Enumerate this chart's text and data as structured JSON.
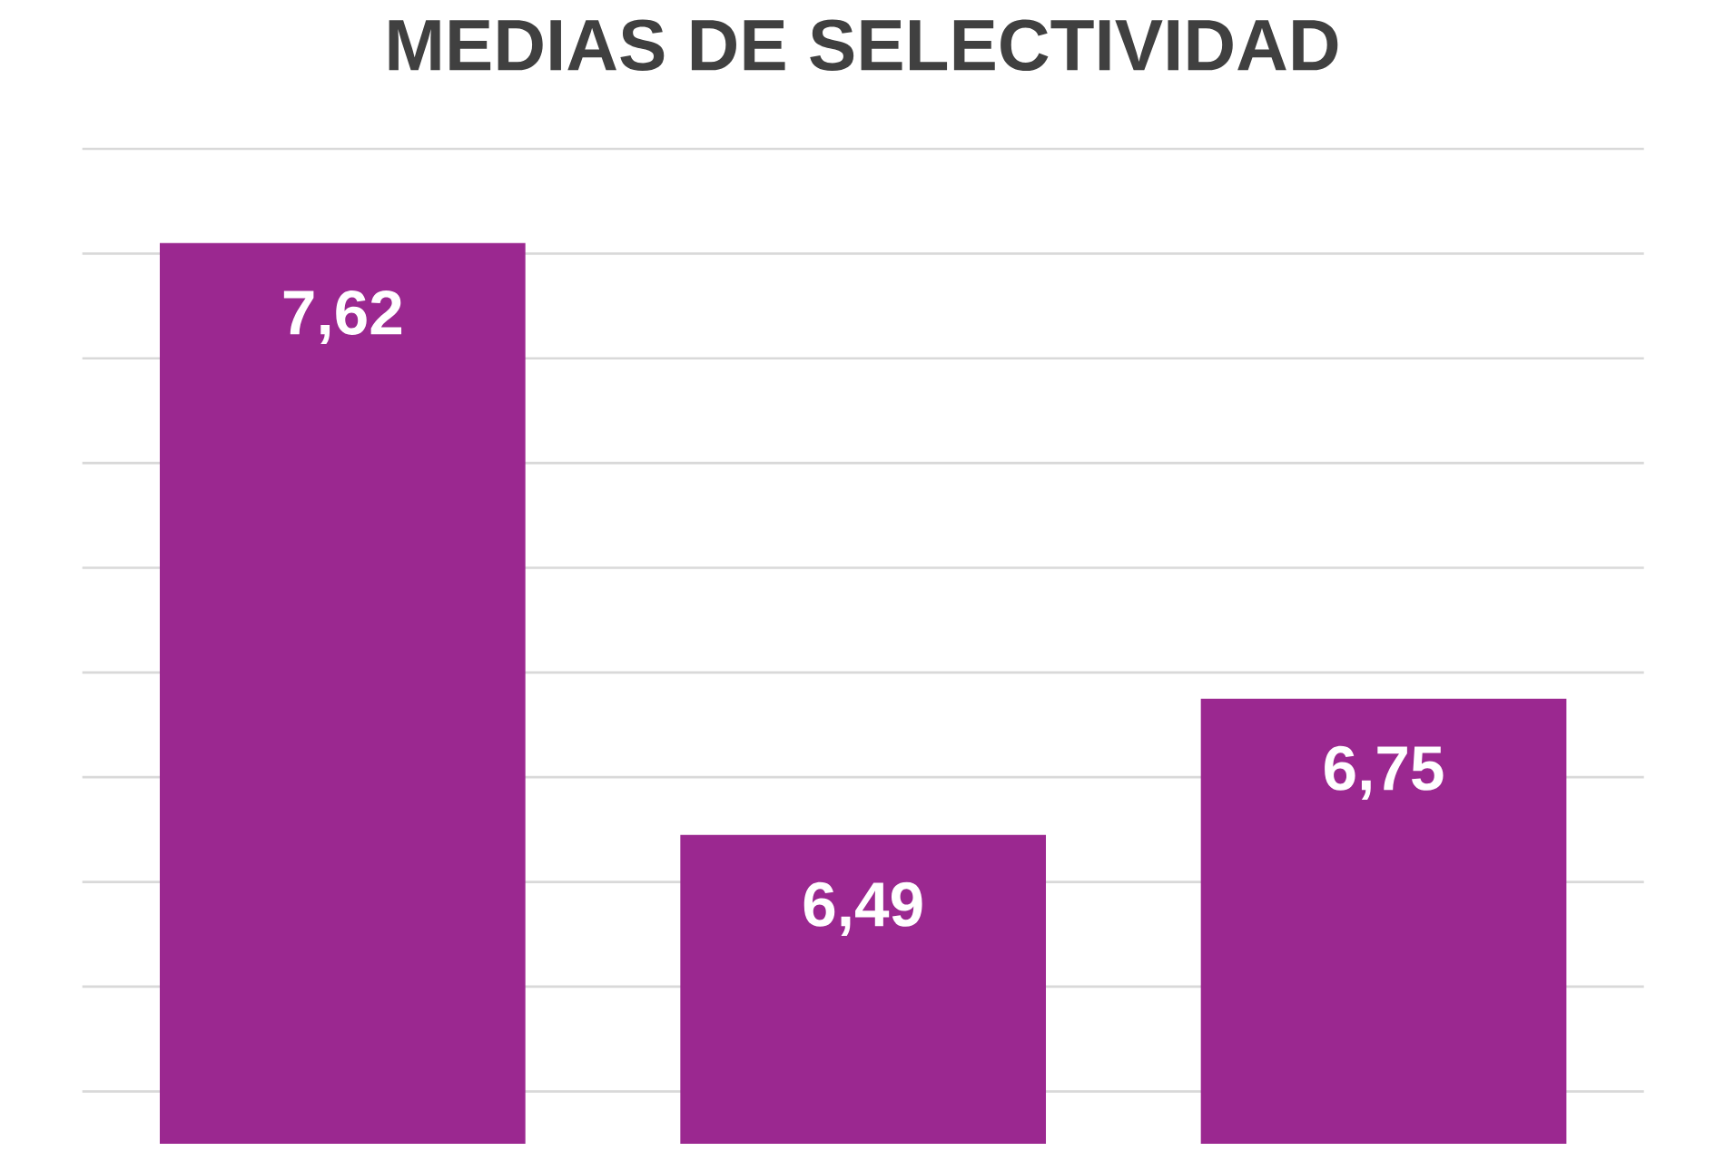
{
  "chart_data": {
    "type": "bar",
    "title": "MEDIAS DE SELECTIVIDAD",
    "categories": [
      null,
      null,
      null
    ],
    "values": [
      7.62,
      6.49,
      6.75
    ],
    "value_labels": [
      "7,62",
      "6,49",
      "6,75"
    ],
    "color": "#9b2890",
    "ylim": [
      5.9,
      7.8
    ],
    "yticks": [
      {
        "value": 6.0,
        "label": null
      },
      {
        "value": 6.2,
        "label": null
      },
      {
        "value": 6.4,
        "label": null
      },
      {
        "value": 6.6,
        "label": null
      },
      {
        "value": 6.8,
        "label": null
      },
      {
        "value": 7.0,
        "label": null
      },
      {
        "value": 7.2,
        "label": null
      },
      {
        "value": 7.4,
        "label": null
      },
      {
        "value": 7.6,
        "label": null
      },
      {
        "value": 7.8,
        "label": null
      }
    ],
    "grid": "y"
  }
}
